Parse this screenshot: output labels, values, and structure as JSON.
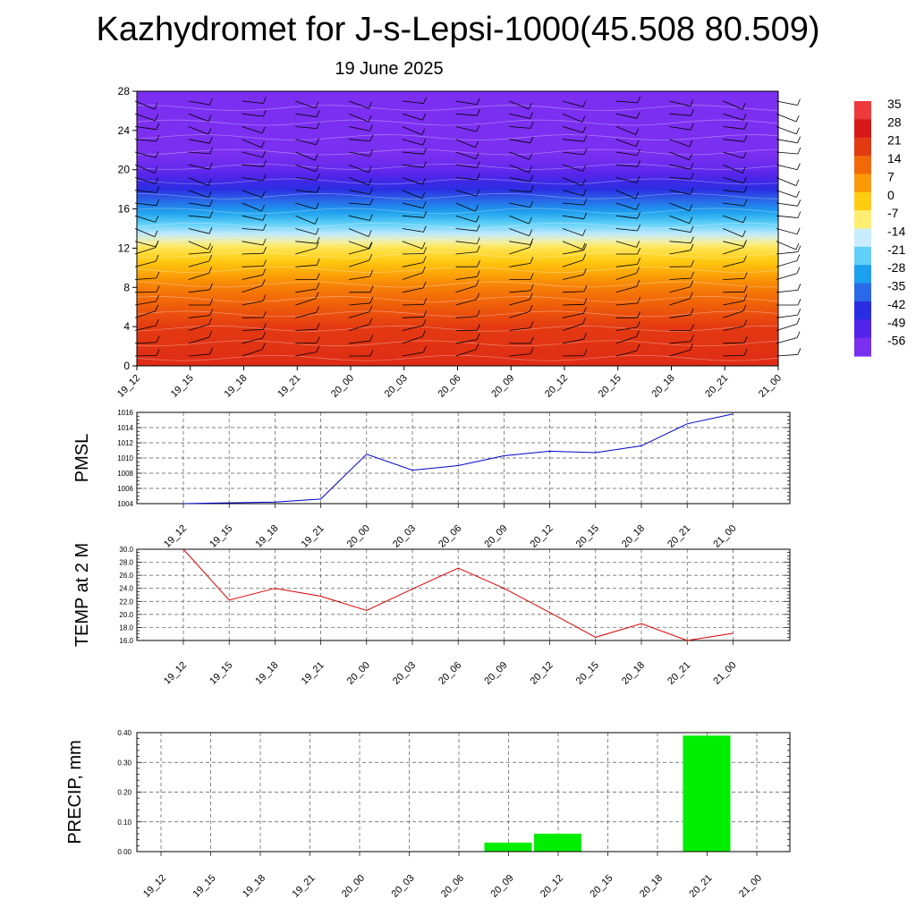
{
  "header": {
    "title": "Kazhydromet for J-s-Lepsi-1000(45.508 80.509)",
    "date": "19 June 2025"
  },
  "chart_data": [
    {
      "type": "heatmap",
      "ylim": [
        0,
        28
      ],
      "yticks": [
        "0",
        "4",
        "8",
        "12",
        "16",
        "20",
        "24",
        "28"
      ],
      "x": [
        "19_12",
        "19_15",
        "19_18",
        "19_21",
        "20_00",
        "20_03",
        "20_06",
        "20_09",
        "20_12",
        "20_15",
        "20_18",
        "20_21",
        "21_00"
      ],
      "temperature_profile": [
        {
          "level": 0,
          "value": 24
        },
        {
          "level": 4,
          "value": 21
        },
        {
          "level": 8,
          "value": 11
        },
        {
          "level": 12,
          "value": -5
        },
        {
          "level": 14,
          "value": -18
        },
        {
          "level": 16,
          "value": -30
        },
        {
          "level": 18,
          "value": -42
        },
        {
          "level": 20,
          "value": -52
        },
        {
          "level": 22,
          "value": -57
        },
        {
          "level": 24,
          "value": -60
        },
        {
          "level": 28,
          "value": -60
        }
      ],
      "colorbar": {
        "labels": [
          "35",
          "28",
          "21",
          "14",
          "7",
          "0",
          "-7",
          "-14",
          "-21",
          "-28",
          "-35",
          "-42",
          "-49",
          "-56"
        ],
        "colors": [
          "#ee3a3a",
          "#d81818",
          "#e43a12",
          "#f26a08",
          "#fb9a06",
          "#ffcc10",
          "#ffee70",
          "#c9ecff",
          "#5fd0f7",
          "#1aa0ee",
          "#2a6ae8",
          "#2a2ee2",
          "#5224ea",
          "#7b2ff0"
        ]
      },
      "wind_barbs": true,
      "grid": false
    },
    {
      "type": "line",
      "ylabel": "PMSL",
      "x": [
        "19_12",
        "19_15",
        "19_18",
        "19_21",
        "20_00",
        "20_03",
        "20_06",
        "20_09",
        "20_12",
        "20_15",
        "20_18",
        "20_21",
        "21_00"
      ],
      "series": [
        {
          "values": [
            1004.0,
            1004.1,
            1004.2,
            1004.6,
            1010.5,
            1008.4,
            1009.0,
            1010.3,
            1010.9,
            1010.7,
            1011.6,
            1014.5,
            1015.8
          ],
          "color": "#0000cc"
        }
      ],
      "ylim": [
        1004,
        1016
      ],
      "yticks": [
        "1004",
        "1006",
        "1008",
        "1010",
        "1012",
        "1014",
        "1016"
      ],
      "grid": true
    },
    {
      "type": "line",
      "ylabel": "TEMP at 2 M",
      "x": [
        "19_12",
        "19_15",
        "19_18",
        "19_21",
        "20_00",
        "20_03",
        "20_06",
        "20_09",
        "20_12",
        "20_15",
        "20_18",
        "20_21",
        "21_00"
      ],
      "series": [
        {
          "values": [
            30.0,
            22.2,
            24.0,
            22.8,
            20.6,
            23.9,
            27.1,
            24.0,
            20.3,
            16.5,
            18.6,
            16.0,
            17.1
          ],
          "color": "#dd0000"
        }
      ],
      "ylim": [
        16,
        30
      ],
      "yticks": [
        "16.0",
        "18.0",
        "20.0",
        "22.0",
        "24.0",
        "26.0",
        "28.0",
        "30.0"
      ],
      "grid": true
    },
    {
      "type": "bar",
      "ylabel": "PRECIP, mm",
      "categories": [
        "19_12",
        "19_15",
        "19_18",
        "19_21",
        "20_00",
        "20_03",
        "20_06",
        "20_09",
        "20_12",
        "20_15",
        "20_18",
        "20_21",
        "21_00"
      ],
      "values": [
        0,
        0,
        0,
        0,
        0,
        0,
        0,
        0.03,
        0.06,
        0,
        0,
        0.39,
        0
      ],
      "color": "#00ee00",
      "ylim": [
        0,
        0.4
      ],
      "yticks": [
        "0.00",
        "0.10",
        "0.20",
        "0.30",
        "0.40"
      ],
      "grid": true
    }
  ]
}
